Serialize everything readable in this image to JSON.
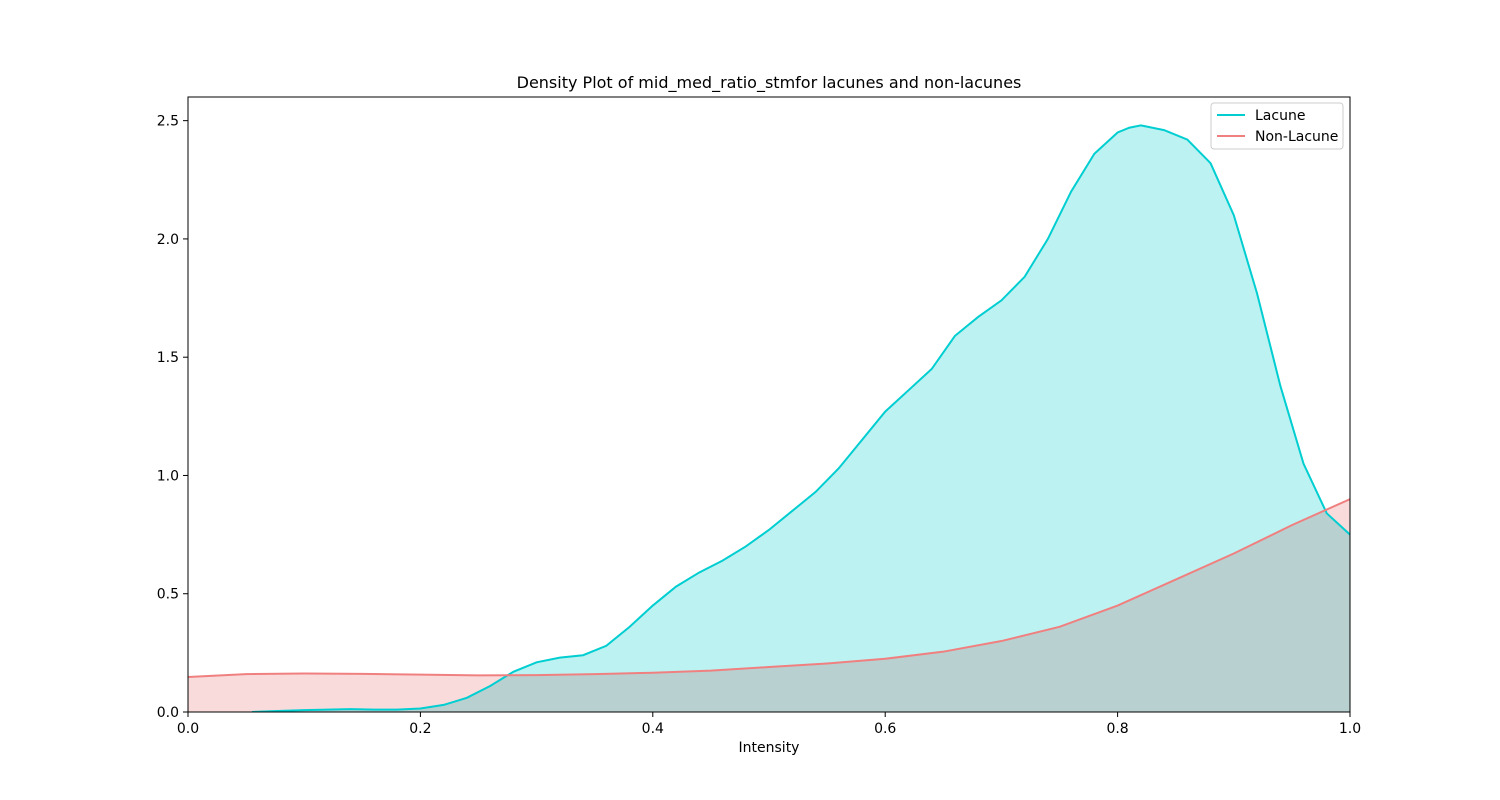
{
  "chart_data": {
    "type": "area",
    "title": "Density Plot of mid_med_ratio_stmfor lacunes and non-lacunes",
    "xlabel": "Intensity",
    "ylabel": "",
    "xlim": [
      0.0,
      1.0
    ],
    "ylim": [
      0.0,
      2.6
    ],
    "xticks": [
      "0.0",
      "0.2",
      "0.4",
      "0.6",
      "0.8",
      "1.0"
    ],
    "yticks": [
      "0.0",
      "0.5",
      "1.0",
      "1.5",
      "2.0",
      "2.5"
    ],
    "grid": false,
    "legend_position": "top-right",
    "series": [
      {
        "name": "Lacune",
        "color": "#00CED1",
        "fill": "#BDF2F2",
        "x": [
          0.055,
          0.08,
          0.1,
          0.12,
          0.14,
          0.16,
          0.18,
          0.2,
          0.22,
          0.24,
          0.26,
          0.28,
          0.3,
          0.32,
          0.34,
          0.36,
          0.38,
          0.4,
          0.42,
          0.44,
          0.46,
          0.48,
          0.5,
          0.52,
          0.54,
          0.56,
          0.58,
          0.6,
          0.62,
          0.64,
          0.66,
          0.68,
          0.7,
          0.72,
          0.74,
          0.76,
          0.78,
          0.8,
          0.81,
          0.82,
          0.84,
          0.86,
          0.88,
          0.9,
          0.92,
          0.94,
          0.96,
          0.98,
          1.0
        ],
        "y": [
          0.0,
          0.005,
          0.008,
          0.01,
          0.012,
          0.01,
          0.01,
          0.015,
          0.03,
          0.06,
          0.11,
          0.17,
          0.21,
          0.23,
          0.24,
          0.28,
          0.36,
          0.45,
          0.53,
          0.59,
          0.64,
          0.7,
          0.77,
          0.85,
          0.93,
          1.03,
          1.15,
          1.27,
          1.36,
          1.45,
          1.59,
          1.67,
          1.74,
          1.84,
          2.0,
          2.2,
          2.36,
          2.45,
          2.47,
          2.48,
          2.46,
          2.42,
          2.32,
          2.1,
          1.77,
          1.38,
          1.05,
          0.84,
          0.75
        ]
      },
      {
        "name": "Non-Lacune",
        "color": "#F08080",
        "fill": "#FADBDB",
        "x": [
          0.0,
          0.05,
          0.1,
          0.15,
          0.2,
          0.25,
          0.3,
          0.35,
          0.4,
          0.45,
          0.5,
          0.55,
          0.6,
          0.65,
          0.7,
          0.75,
          0.8,
          0.85,
          0.9,
          0.95,
          1.0
        ],
        "y": [
          0.148,
          0.16,
          0.163,
          0.161,
          0.158,
          0.155,
          0.156,
          0.16,
          0.166,
          0.175,
          0.19,
          0.205,
          0.225,
          0.255,
          0.3,
          0.36,
          0.45,
          0.56,
          0.67,
          0.79,
          0.9
        ]
      }
    ]
  }
}
